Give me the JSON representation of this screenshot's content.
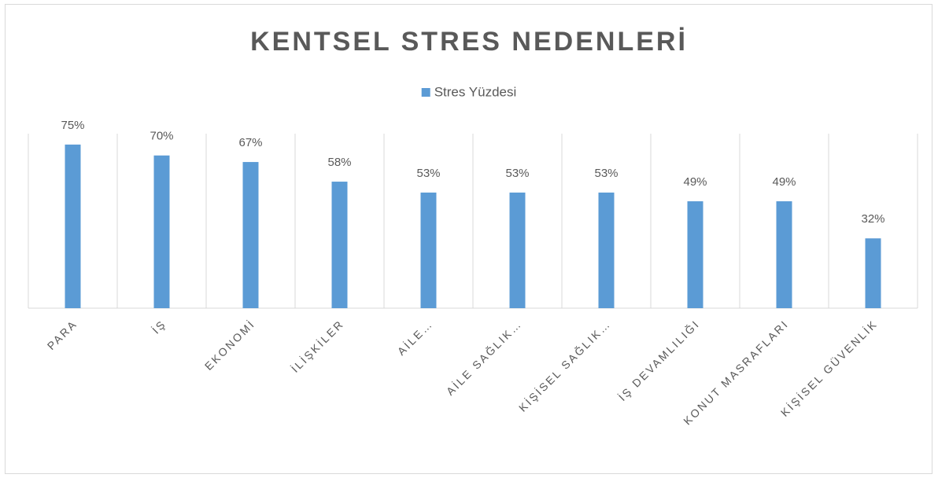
{
  "chart_data": {
    "type": "bar",
    "title": "KENTSEL STRES NEDENLERİ",
    "categories": [
      "PARA",
      "İŞ",
      "EKONOMİ",
      "İLİŞKİLER",
      "AİLE…",
      "AİLE SAĞLIK…",
      "KİŞİSEL SAĞLIK…",
      "İŞ DEVAMLILIĞI",
      "KONUT MASRAFLARI",
      "KİŞİSEL GÜVENLİK"
    ],
    "series": [
      {
        "name": "Stres Yüzdesi",
        "color": "#5b9bd5",
        "values": [
          75,
          70,
          67,
          58,
          53,
          53,
          53,
          49,
          49,
          32
        ],
        "value_labels": [
          "75%",
          "70%",
          "67%",
          "58%",
          "53%",
          "53%",
          "53%",
          "49%",
          "49%",
          "32%"
        ]
      }
    ],
    "ylim": [
      0,
      80
    ],
    "legend": "top"
  }
}
